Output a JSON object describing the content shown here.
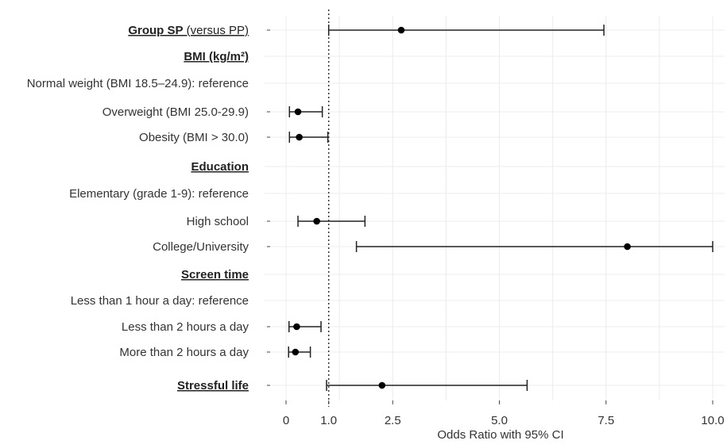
{
  "chart_data": {
    "type": "forest",
    "title": "",
    "xlabel": "Odds Ratio with 95% CI",
    "xlim": [
      -0.5,
      10.0
    ],
    "xticks": [
      0,
      1.0,
      2.5,
      5.0,
      7.5,
      10.0
    ],
    "xtick_labels": [
      "0",
      "1.0",
      "2.5",
      "5.0",
      "7.5",
      "10.0"
    ],
    "reference_line": 1.0,
    "grid": true,
    "rows": [
      {
        "label": "Group SP",
        "note": "(versus PP)",
        "header": true,
        "or": 2.7,
        "lo": 1.0,
        "hi": 7.45
      },
      {
        "label": "BMI (kg/m²)",
        "header": true
      },
      {
        "label": "Normal weight (BMI 18.5–24.9): reference"
      },
      {
        "label": "Overweight (BMI 25.0-29.9)",
        "or": 0.28,
        "lo": 0.08,
        "hi": 0.85
      },
      {
        "label": "Obesity (BMI > 30.0)",
        "or": 0.31,
        "lo": 0.08,
        "hi": 0.98
      },
      {
        "label": "Education",
        "header": true
      },
      {
        "label": "Elementary (grade 1-9): reference"
      },
      {
        "label": "High school",
        "or": 0.72,
        "lo": 0.28,
        "hi": 1.85
      },
      {
        "label": "College/University",
        "or": 8.0,
        "lo": 1.65,
        "hi": 10.0
      },
      {
        "label": "Screen time",
        "header": true
      },
      {
        "label": "Less than 1 hour a day: reference"
      },
      {
        "label": "Less than 2 hours a day",
        "or": 0.25,
        "lo": 0.07,
        "hi": 0.82
      },
      {
        "label": "More than 2 hours a day",
        "or": 0.22,
        "lo": 0.06,
        "hi": 0.57
      },
      {
        "label": "Stressful life",
        "header": true,
        "or": 2.25,
        "lo": 0.95,
        "hi": 5.65
      }
    ]
  }
}
